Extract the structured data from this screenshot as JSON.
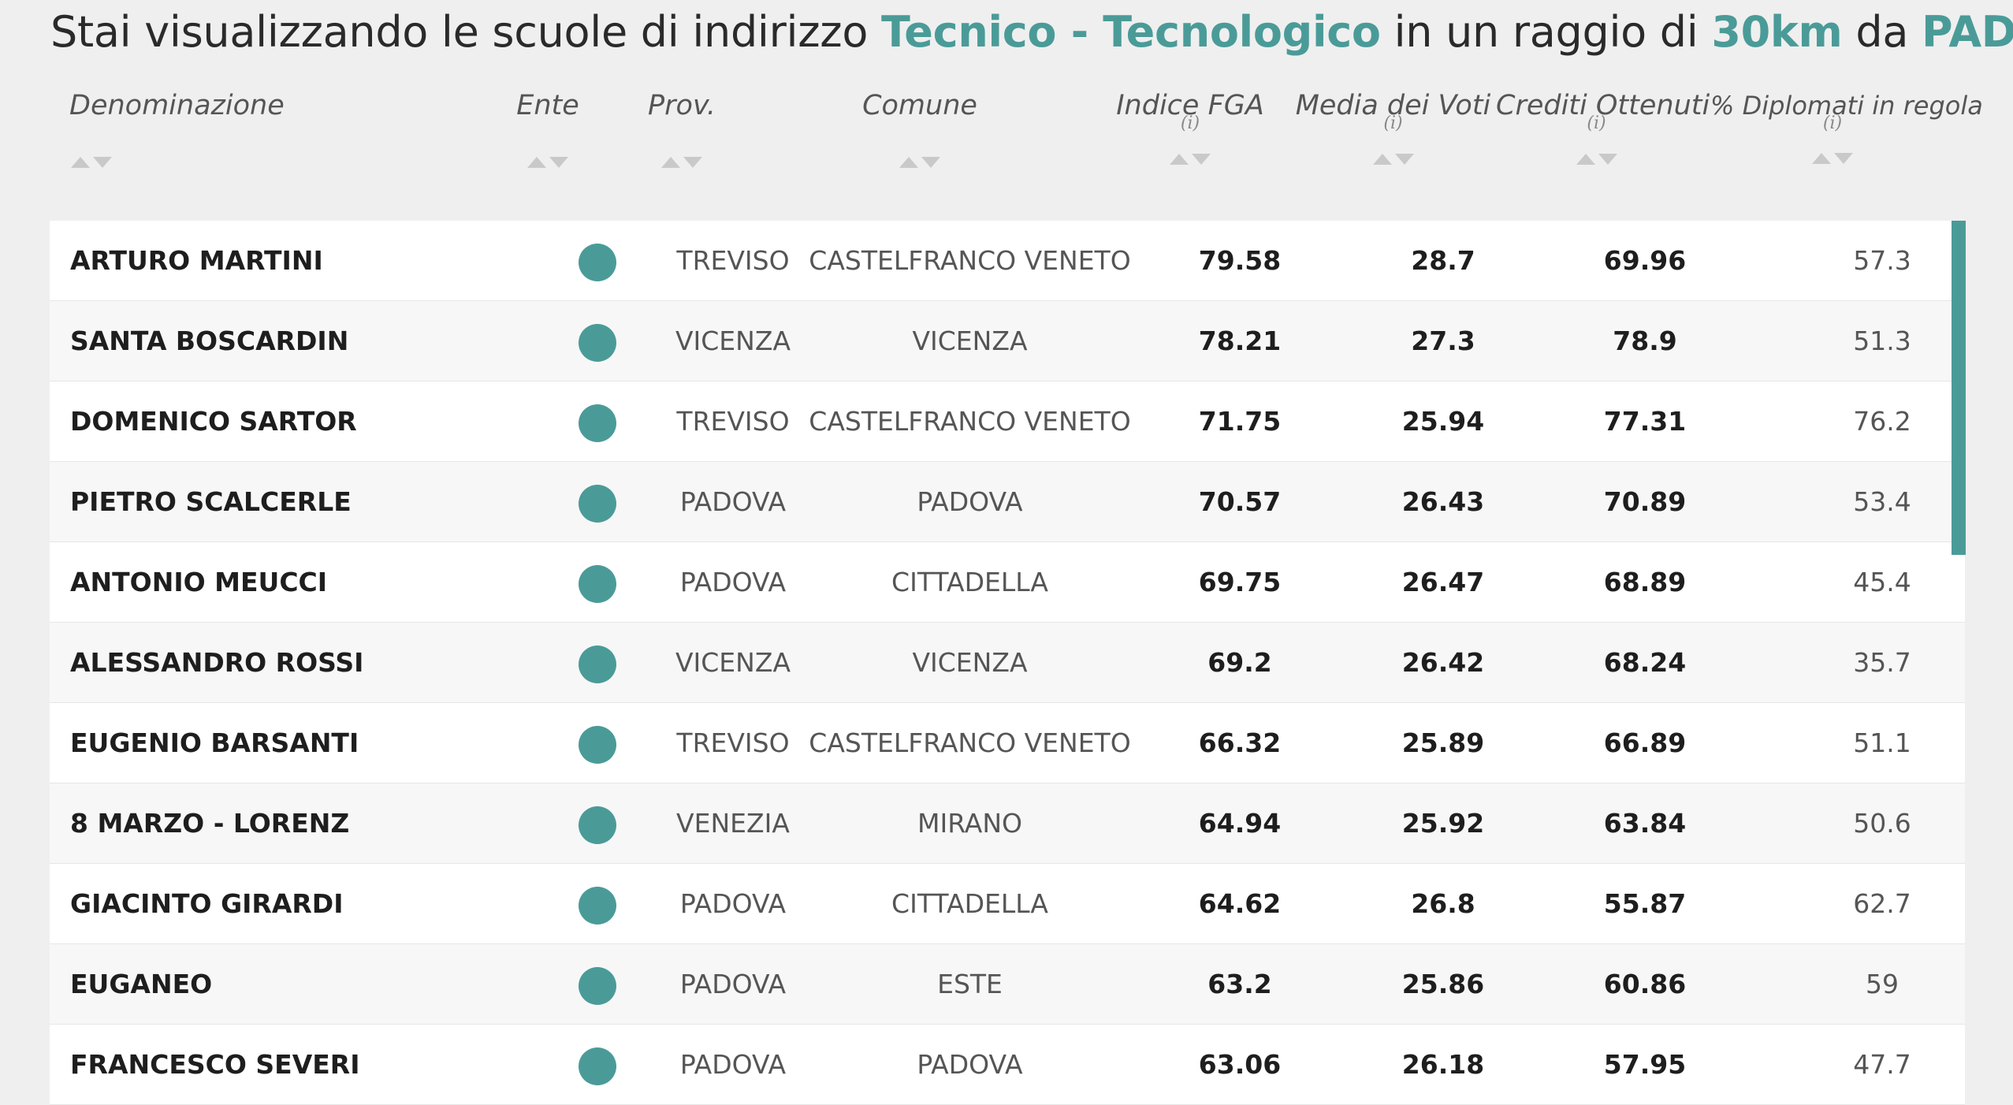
{
  "title": {
    "prefix": "Stai visualizzando le scuole di indirizzo",
    "indirizzo": "Tecnico - Tecnologico",
    "mid": "in un raggio di",
    "raggio": "30km",
    "da": "da",
    "citta": "PADOVA"
  },
  "headers": {
    "denominazione": "Denominazione",
    "ente": "Ente",
    "prov": "Prov.",
    "comune": "Comune",
    "fga": "Indice FGA",
    "media": "Media dei Voti",
    "crediti": "Crediti Ottenuti",
    "diplomati": "% Diplomati in regola",
    "info": "(i)"
  },
  "colors": {
    "accent": "#4a9b98",
    "background": "#efefef"
  },
  "icons": {
    "ente": "status-dot-icon",
    "sort": "sort-arrows-icon"
  },
  "rows": [
    {
      "name": "ARTURO MARTINI",
      "prov": "TREVISO",
      "comune": "CASTELFRANCO VENETO",
      "fga": "79.58",
      "media": "28.7",
      "crediti": "69.96",
      "diplomati": "57.3"
    },
    {
      "name": "SANTA BOSCARDIN",
      "prov": "VICENZA",
      "comune": "VICENZA",
      "fga": "78.21",
      "media": "27.3",
      "crediti": "78.9",
      "diplomati": "51.3"
    },
    {
      "name": "DOMENICO SARTOR",
      "prov": "TREVISO",
      "comune": "CASTELFRANCO VENETO",
      "fga": "71.75",
      "media": "25.94",
      "crediti": "77.31",
      "diplomati": "76.2"
    },
    {
      "name": "PIETRO SCALCERLE",
      "prov": "PADOVA",
      "comune": "PADOVA",
      "fga": "70.57",
      "media": "26.43",
      "crediti": "70.89",
      "diplomati": "53.4"
    },
    {
      "name": "ANTONIO MEUCCI",
      "prov": "PADOVA",
      "comune": "CITTADELLA",
      "fga": "69.75",
      "media": "26.47",
      "crediti": "68.89",
      "diplomati": "45.4"
    },
    {
      "name": "ALESSANDRO ROSSI",
      "prov": "VICENZA",
      "comune": "VICENZA",
      "fga": "69.2",
      "media": "26.42",
      "crediti": "68.24",
      "diplomati": "35.7"
    },
    {
      "name": "EUGENIO BARSANTI",
      "prov": "TREVISO",
      "comune": "CASTELFRANCO VENETO",
      "fga": "66.32",
      "media": "25.89",
      "crediti": "66.89",
      "diplomati": "51.1"
    },
    {
      "name": "8 MARZO - LORENZ",
      "prov": "VENEZIA",
      "comune": "MIRANO",
      "fga": "64.94",
      "media": "25.92",
      "crediti": "63.84",
      "diplomati": "50.6"
    },
    {
      "name": "GIACINTO GIRARDI",
      "prov": "PADOVA",
      "comune": "CITTADELLA",
      "fga": "64.62",
      "media": "26.8",
      "crediti": "55.87",
      "diplomati": "62.7"
    },
    {
      "name": "EUGANEO",
      "prov": "PADOVA",
      "comune": "ESTE",
      "fga": "63.2",
      "media": "25.86",
      "crediti": "60.86",
      "diplomati": "59"
    },
    {
      "name": "FRANCESCO SEVERI",
      "prov": "PADOVA",
      "comune": "PADOVA",
      "fga": "63.06",
      "media": "26.18",
      "crediti": "57.95",
      "diplomati": "47.7"
    }
  ]
}
